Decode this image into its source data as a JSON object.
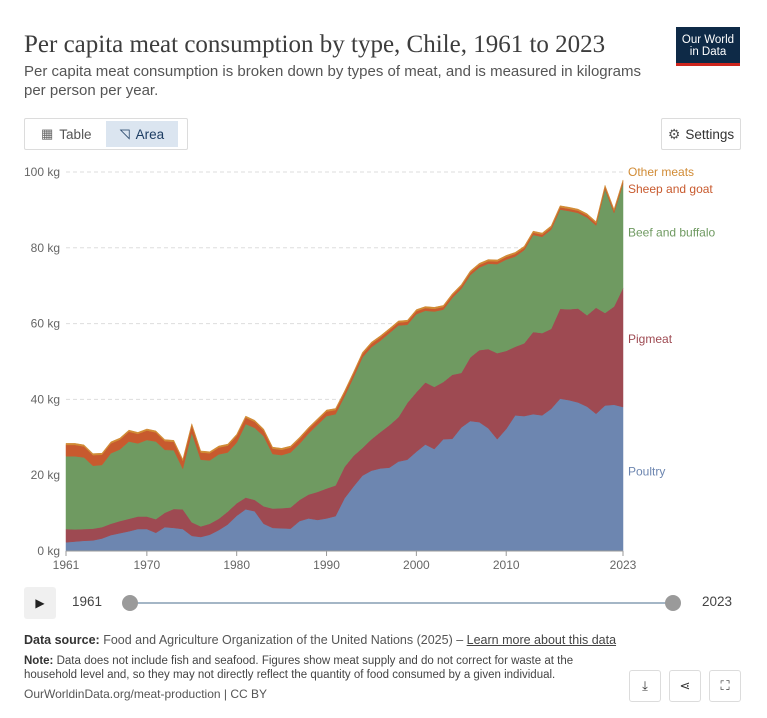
{
  "header": {
    "title": "Per capita meat consumption by type, Chile, 1961 to 2023",
    "subtitle": "Per capita meat consumption is broken down by types of meat, and is measured in kilograms per person per year.",
    "logo_line1": "Our World",
    "logo_line2": "in Data"
  },
  "toolbar": {
    "tab_table": "Table",
    "tab_area": "Area",
    "settings": "Settings"
  },
  "timeline": {
    "start_label": "1961",
    "end_label": "2023"
  },
  "footer": {
    "source_label": "Data source:",
    "source_text": "Food and Agriculture Organization of the United Nations (2025) – ",
    "source_link": "Learn more about this data",
    "note_label": "Note:",
    "note_text": "Data does not include fish and seafood. Figures show meat supply and do not correct for waste at the household level and, so they may not directly reflect the quantity of food consumed by a given individual.",
    "url": "OurWorldinData.org/meat-production | CC BY"
  },
  "colors": {
    "poultry": "#6d86b0",
    "pigmeat": "#9e4a52",
    "beef": "#6f9a61",
    "sheep": "#c85a2e",
    "other": "#d18b35"
  },
  "chart_data": {
    "type": "area",
    "stacked": true,
    "x": [
      1961,
      1962,
      1963,
      1964,
      1965,
      1966,
      1967,
      1968,
      1969,
      1970,
      1971,
      1972,
      1973,
      1974,
      1975,
      1976,
      1977,
      1978,
      1979,
      1980,
      1981,
      1982,
      1983,
      1984,
      1985,
      1986,
      1987,
      1988,
      1989,
      1990,
      1991,
      1992,
      1993,
      1994,
      1995,
      1996,
      1997,
      1998,
      1999,
      2000,
      2001,
      2002,
      2003,
      2004,
      2005,
      2006,
      2007,
      2008,
      2009,
      2010,
      2011,
      2012,
      2013,
      2014,
      2015,
      2016,
      2017,
      2018,
      2019,
      2020,
      2021,
      2022,
      2023
    ],
    "xticks": [
      1961,
      1970,
      1980,
      1990,
      2000,
      2010,
      2023
    ],
    "yticks": [
      0,
      20,
      40,
      60,
      80,
      100
    ],
    "ytick_labels": [
      "0 kg",
      "20 kg",
      "40 kg",
      "60 kg",
      "80 kg",
      "100 kg"
    ],
    "ylim": [
      0,
      100
    ],
    "grid": true,
    "series": [
      {
        "name": "Poultry",
        "color": "#6d86b0",
        "values": [
          2.3,
          2.5,
          2.7,
          2.8,
          3.3,
          4.2,
          4.7,
          5.2,
          5.8,
          5.8,
          4.8,
          6.3,
          6.1,
          5.8,
          4.0,
          3.7,
          4.3,
          5.5,
          7.0,
          9.3,
          11.0,
          10.5,
          7.2,
          6.1,
          6.0,
          5.9,
          7.9,
          8.6,
          8.2,
          8.6,
          9.2,
          13.9,
          17.0,
          19.9,
          21.2,
          21.8,
          22.0,
          23.6,
          24.1,
          26.2,
          28.1,
          26.9,
          29.5,
          29.6,
          32.6,
          34.3,
          34.0,
          32.4,
          29.5,
          32.2,
          35.8,
          35.6,
          36.1,
          35.8,
          37.5,
          40.2,
          39.8,
          39.2,
          38.1,
          36.2,
          38.4,
          38.6,
          38.0
        ]
      },
      {
        "name": "Pigmeat",
        "color": "#9e4a52",
        "values": [
          3.5,
          3.2,
          3.1,
          3.1,
          3.0,
          3.0,
          3.2,
          3.3,
          3.3,
          3.3,
          3.6,
          3.8,
          5.0,
          5.2,
          3.6,
          2.8,
          2.9,
          3.0,
          3.4,
          3.3,
          3.1,
          3.0,
          4.6,
          5.1,
          5.3,
          5.6,
          5.6,
          6.3,
          7.4,
          7.9,
          8.1,
          8.3,
          8.1,
          7.3,
          8.3,
          9.6,
          11.2,
          11.7,
          15.0,
          15.7,
          16.4,
          16.4,
          15.1,
          16.9,
          14.4,
          16.8,
          19.0,
          20.9,
          22.7,
          20.6,
          18.1,
          19.2,
          21.7,
          21.7,
          21.1,
          23.7,
          24.0,
          24.8,
          24.1,
          28.0,
          24.4,
          25.9,
          31.4
        ]
      },
      {
        "name": "Beef and buffalo",
        "color": "#6f9a61",
        "values": [
          19.2,
          19.3,
          18.9,
          16.6,
          16.4,
          18.6,
          18.9,
          20.4,
          19.3,
          20.2,
          20.5,
          16.6,
          15.5,
          10.7,
          23.6,
          17.6,
          16.7,
          17.0,
          15.6,
          16.0,
          19.4,
          19.0,
          18.5,
          14.4,
          14.0,
          14.5,
          14.8,
          16.1,
          17.7,
          19.1,
          18.8,
          18.6,
          20.7,
          23.9,
          24.3,
          24.1,
          24.3,
          24.2,
          20.6,
          20.6,
          18.9,
          19.9,
          19.1,
          20.3,
          22.2,
          21.7,
          21.8,
          22.5,
          23.5,
          24.1,
          23.8,
          24.6,
          25.6,
          25.4,
          26.2,
          26.2,
          25.9,
          25.2,
          25.8,
          21.7,
          32.7,
          24.7,
          27.5
        ]
      },
      {
        "name": "Sheep and goat",
        "color": "#c85a2e",
        "values": [
          3.0,
          3.0,
          2.9,
          2.8,
          2.7,
          2.6,
          2.6,
          2.6,
          2.5,
          2.5,
          2.4,
          2.3,
          2.2,
          2.1,
          2.0,
          1.9,
          1.9,
          1.8,
          1.8,
          1.8,
          1.7,
          1.6,
          1.5,
          1.4,
          1.4,
          1.3,
          1.3,
          1.2,
          1.2,
          1.2,
          1.1,
          1.0,
          1.0,
          0.9,
          0.9,
          0.9,
          0.8,
          0.8,
          0.8,
          0.8,
          0.7,
          0.7,
          0.7,
          0.7,
          0.7,
          0.7,
          0.7,
          0.7,
          0.7,
          0.7,
          0.7,
          0.6,
          0.6,
          0.6,
          0.6,
          0.6,
          0.6,
          0.6,
          0.6,
          0.6,
          0.6,
          0.6,
          0.6
        ]
      },
      {
        "name": "Other meats",
        "color": "#d18b35",
        "values": [
          0.4,
          0.4,
          0.4,
          0.4,
          0.4,
          0.4,
          0.4,
          0.4,
          0.4,
          0.4,
          0.4,
          0.4,
          0.4,
          0.4,
          0.4,
          0.4,
          0.4,
          0.4,
          0.4,
          0.4,
          0.4,
          0.4,
          0.4,
          0.4,
          0.4,
          0.4,
          0.4,
          0.4,
          0.4,
          0.4,
          0.4,
          0.4,
          0.4,
          0.4,
          0.4,
          0.4,
          0.4,
          0.4,
          0.4,
          0.4,
          0.4,
          0.4,
          0.4,
          0.4,
          0.4,
          0.4,
          0.4,
          0.4,
          0.4,
          0.4,
          0.4,
          0.4,
          0.4,
          0.4,
          0.4,
          0.4,
          0.4,
          0.4,
          0.4,
          0.4,
          0.4,
          0.4,
          0.4
        ]
      }
    ]
  }
}
